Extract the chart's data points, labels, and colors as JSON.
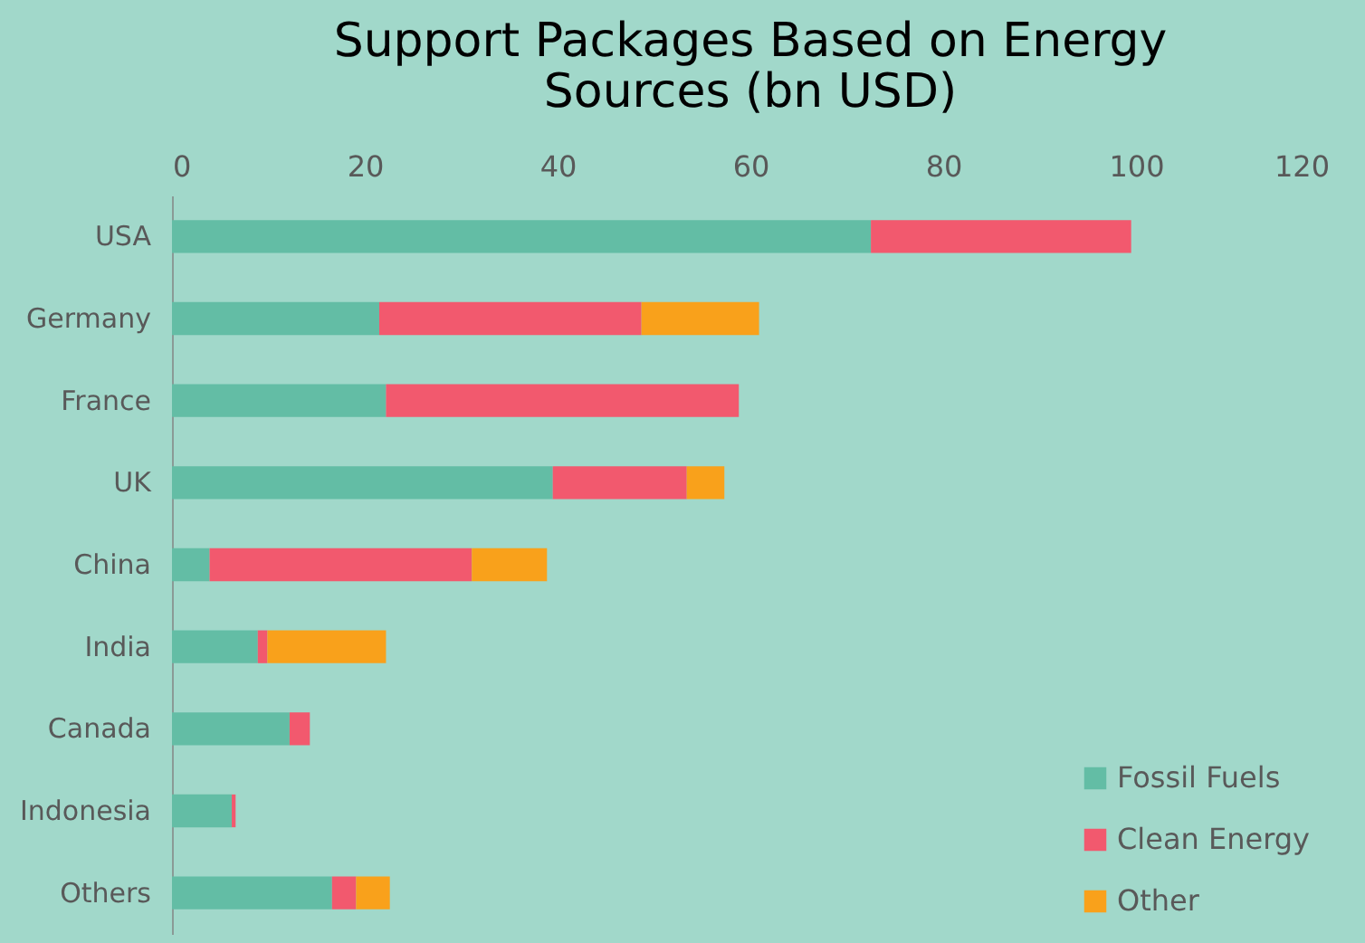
{
  "chart_data": {
    "type": "bar",
    "orientation": "horizontal",
    "stacked": true,
    "title": "Support Packages Based on Energy Sources (bn USD)",
    "categories": [
      "USA",
      "Germany",
      "France",
      "UK",
      "China",
      "India",
      "Canada",
      "Indonesia",
      "Others"
    ],
    "series": [
      {
        "name": "Fossil Fuels",
        "color": "#63bda5",
        "values": [
          72.5,
          21.5,
          22.2,
          39.5,
          3.9,
          8.9,
          12.2,
          6.2,
          16.6
        ]
      },
      {
        "name": "Clean Energy",
        "color": "#f2596e",
        "values": [
          27,
          27.2,
          36.6,
          13.9,
          27.2,
          1,
          2.1,
          0.4,
          2.5
        ]
      },
      {
        "name": "Other",
        "color": "#f9a11b",
        "values": [
          0,
          12.2,
          0,
          3.9,
          7.8,
          12.3,
          0,
          0,
          3.5
        ]
      }
    ],
    "xlim": [
      0,
      120
    ],
    "xticks": [
      0,
      20,
      40,
      60,
      80,
      100,
      120
    ],
    "grid": false,
    "legend": "bottom right"
  }
}
